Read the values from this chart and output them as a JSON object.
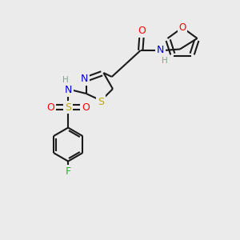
{
  "bg_color": "#ebebeb",
  "bond_color": "#1a1a1a",
  "atom_colors": {
    "O": "#ff0000",
    "N": "#0000dd",
    "S_thio": "#bbaa00",
    "S_sulfonyl": "#bbaa00",
    "F": "#33aa33",
    "H": "#7aab8a",
    "C": "#1a1a1a"
  },
  "lw": 1.5,
  "fs": 8.5
}
